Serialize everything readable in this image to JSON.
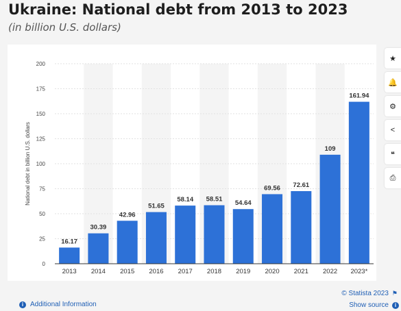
{
  "header": {
    "title": "Ukraine: National debt from 2013 to 2023",
    "subtitle": "(in billion U.S. dollars)"
  },
  "toolbar": {
    "items": [
      {
        "name": "star-icon",
        "glyph": "★"
      },
      {
        "name": "bell-icon",
        "glyph": "🔔"
      },
      {
        "name": "gear-icon",
        "glyph": "⚙"
      },
      {
        "name": "share-icon",
        "glyph": "<"
      },
      {
        "name": "quote-icon",
        "glyph": "❝"
      },
      {
        "name": "print-icon",
        "glyph": "⎙"
      }
    ]
  },
  "footer": {
    "credit": "© Statista 2023",
    "additional_info": "Additional Information",
    "show_source": "Show source",
    "info_glyph": "i",
    "flag_glyph": "⚑"
  },
  "chart_data": {
    "type": "bar",
    "categories": [
      "2013",
      "2014",
      "2015",
      "2016",
      "2017",
      "2018",
      "2019",
      "2020",
      "2021",
      "2022",
      "2023*"
    ],
    "values": [
      16.17,
      30.39,
      42.96,
      51.65,
      58.14,
      58.51,
      54.64,
      69.56,
      72.61,
      109,
      161.94
    ],
    "value_labels": [
      "16.17",
      "30.39",
      "42.96",
      "51.65",
      "58.14",
      "58.51",
      "54.64",
      "69.56",
      "72.61",
      "109",
      "161.94"
    ],
    "ylabel": "National debt in billion U.S. dollars",
    "ylim": [
      0,
      200
    ],
    "yticks": [
      0,
      25,
      50,
      75,
      100,
      125,
      150,
      175,
      200
    ],
    "grid": true,
    "bar_color": "#2d71d7",
    "band_color": "#f4f4f4"
  }
}
